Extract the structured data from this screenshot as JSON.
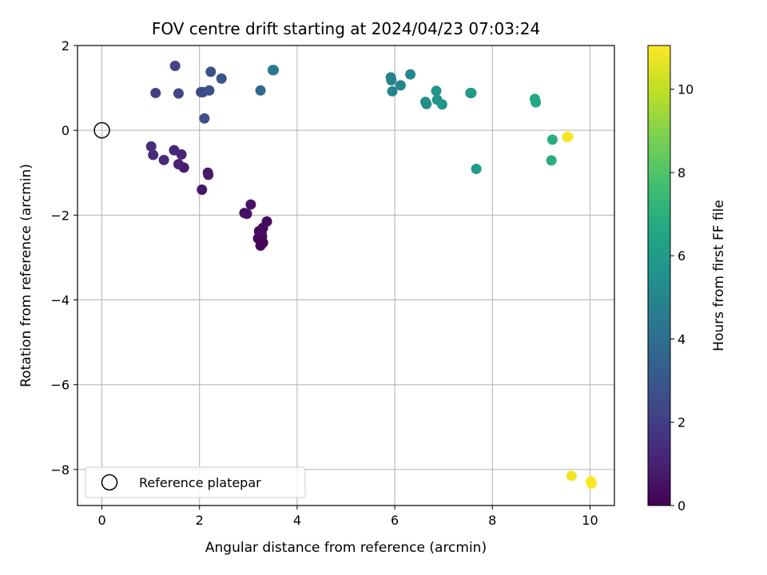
{
  "chart_data": {
    "type": "scatter",
    "title": "FOV centre drift starting at 2024/04/23 07:03:24",
    "xlabel": "Angular distance from reference (arcmin)",
    "ylabel": "Rotation from reference (arcmin)",
    "xlim": [
      -0.5,
      10.5
    ],
    "ylim": [
      -8.85,
      2.0
    ],
    "xticks": [
      0,
      2,
      4,
      6,
      8,
      10
    ],
    "yticks": [
      2,
      0,
      -2,
      -4,
      -6,
      -8
    ],
    "xtick_labels": [
      "0",
      "2",
      "4",
      "6",
      "8",
      "10"
    ],
    "ytick_labels": [
      "2",
      "0",
      "−2",
      "−4",
      "−6",
      "−8"
    ],
    "grid": true,
    "colormap": "viridis",
    "colorbar": {
      "label": "Hours from first FF file",
      "range": [
        0,
        11.05
      ],
      "ticks": [
        0,
        2,
        4,
        6,
        8,
        10
      ],
      "tick_labels": [
        "0",
        "2",
        "4",
        "6",
        "8",
        "10"
      ]
    },
    "legend": {
      "placement": "lower-left",
      "entries": [
        {
          "label": "Reference platepar",
          "marker": "open-circle"
        }
      ]
    },
    "reference_point": {
      "x": 0,
      "y": 0
    },
    "points": [
      {
        "x": 3.25,
        "y": -2.72,
        "h": 0.05
      },
      {
        "x": 3.3,
        "y": -2.65,
        "h": 0.1
      },
      {
        "x": 3.2,
        "y": -2.55,
        "h": 0.15
      },
      {
        "x": 3.28,
        "y": -2.5,
        "h": 0.2
      },
      {
        "x": 3.22,
        "y": -2.38,
        "h": 0.25
      },
      {
        "x": 3.3,
        "y": -2.3,
        "h": 0.3
      },
      {
        "x": 3.38,
        "y": -2.15,
        "h": 0.35
      },
      {
        "x": 3.27,
        "y": -2.42,
        "h": 0.3
      },
      {
        "x": 2.92,
        "y": -1.95,
        "h": 0.45
      },
      {
        "x": 2.97,
        "y": -1.97,
        "h": 0.5
      },
      {
        "x": 3.05,
        "y": -1.75,
        "h": 0.55
      },
      {
        "x": 2.05,
        "y": -1.4,
        "h": 0.65
      },
      {
        "x": 2.18,
        "y": -1.05,
        "h": 0.75
      },
      {
        "x": 2.17,
        "y": -1.0,
        "h": 0.8
      },
      {
        "x": 1.68,
        "y": -0.88,
        "h": 0.9
      },
      {
        "x": 1.57,
        "y": -0.8,
        "h": 1.0
      },
      {
        "x": 1.63,
        "y": -0.57,
        "h": 1.15
      },
      {
        "x": 1.48,
        "y": -0.47,
        "h": 1.2
      },
      {
        "x": 1.27,
        "y": -0.7,
        "h": 1.3
      },
      {
        "x": 1.05,
        "y": -0.58,
        "h": 1.35
      },
      {
        "x": 1.01,
        "y": -0.38,
        "h": 1.4
      },
      {
        "x": 1.1,
        "y": 0.88,
        "h": 2.1
      },
      {
        "x": 1.5,
        "y": 1.52,
        "h": 2.2
      },
      {
        "x": 1.57,
        "y": 0.87,
        "h": 2.3
      },
      {
        "x": 2.03,
        "y": 0.9,
        "h": 2.4
      },
      {
        "x": 2.07,
        "y": 0.9,
        "h": 2.5
      },
      {
        "x": 2.1,
        "y": 0.28,
        "h": 2.6
      },
      {
        "x": 2.2,
        "y": 0.94,
        "h": 2.7
      },
      {
        "x": 2.23,
        "y": 1.38,
        "h": 2.8
      },
      {
        "x": 2.45,
        "y": 1.22,
        "h": 2.9
      },
      {
        "x": 3.25,
        "y": 0.94,
        "h": 3.8
      },
      {
        "x": 3.5,
        "y": 1.42,
        "h": 4.4
      },
      {
        "x": 3.52,
        "y": 1.42,
        "h": 4.5
      },
      {
        "x": 5.92,
        "y": 1.25,
        "h": 4.8
      },
      {
        "x": 5.93,
        "y": 1.18,
        "h": 4.9
      },
      {
        "x": 5.95,
        "y": 0.92,
        "h": 5.0
      },
      {
        "x": 6.12,
        "y": 1.06,
        "h": 4.95
      },
      {
        "x": 6.32,
        "y": 1.32,
        "h": 5.1
      },
      {
        "x": 6.63,
        "y": 0.67,
        "h": 5.4
      },
      {
        "x": 6.65,
        "y": 0.62,
        "h": 5.45
      },
      {
        "x": 6.85,
        "y": 0.93,
        "h": 5.6
      },
      {
        "x": 6.87,
        "y": 0.72,
        "h": 5.65
      },
      {
        "x": 6.97,
        "y": 0.61,
        "h": 5.7
      },
      {
        "x": 7.55,
        "y": 0.88,
        "h": 5.9
      },
      {
        "x": 7.57,
        "y": 0.88,
        "h": 5.95
      },
      {
        "x": 7.67,
        "y": -0.91,
        "h": 6.0
      },
      {
        "x": 8.87,
        "y": 0.74,
        "h": 6.5
      },
      {
        "x": 8.89,
        "y": 0.66,
        "h": 6.6
      },
      {
        "x": 9.23,
        "y": -0.22,
        "h": 6.9
      },
      {
        "x": 9.21,
        "y": -0.71,
        "h": 6.85
      },
      {
        "x": 9.53,
        "y": -0.16,
        "h": 10.9
      },
      {
        "x": 9.55,
        "y": -0.15,
        "h": 10.95
      },
      {
        "x": 9.62,
        "y": -8.15,
        "h": 10.8
      },
      {
        "x": 10.02,
        "y": -8.28,
        "h": 10.9
      },
      {
        "x": 10.03,
        "y": -8.33,
        "h": 11.0
      }
    ]
  }
}
